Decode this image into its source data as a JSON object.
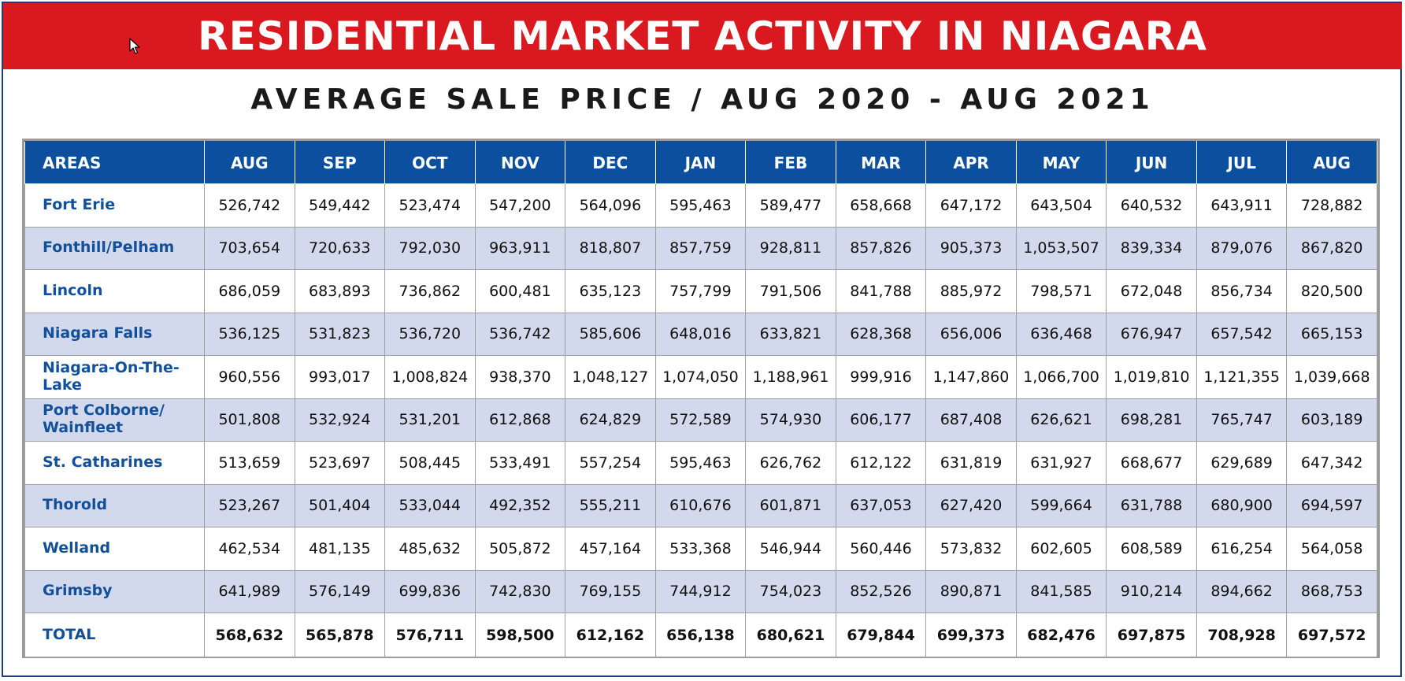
{
  "title": "RESIDENTIAL MARKET ACTIVITY IN NIAGARA",
  "subtitle": "AVERAGE SALE PRICE / AUG 2020 - AUG 2021",
  "colors": {
    "banner": "#d9191f",
    "header": "#0b4f9e",
    "stripe": "#d3d9ec",
    "area_text": "#12509a"
  },
  "chart_data": {
    "type": "table",
    "columns": [
      "AREAS",
      "AUG",
      "SEP",
      "OCT",
      "NOV",
      "DEC",
      "JAN",
      "FEB",
      "MAR",
      "APR",
      "MAY",
      "JUN",
      "JUL",
      "AUG"
    ],
    "rows": [
      {
        "area": "Fort Erie",
        "values": [
          "526,742",
          "549,442",
          "523,474",
          "547,200",
          "564,096",
          "595,463",
          "589,477",
          "658,668",
          "647,172",
          "643,504",
          "640,532",
          "643,911",
          "728,882"
        ]
      },
      {
        "area": "Fonthill/Pelham",
        "values": [
          "703,654",
          "720,633",
          "792,030",
          "963,911",
          "818,807",
          "857,759",
          "928,811",
          "857,826",
          "905,373",
          "1,053,507",
          "839,334",
          "879,076",
          "867,820"
        ]
      },
      {
        "area": "Lincoln",
        "values": [
          "686,059",
          "683,893",
          "736,862",
          "600,481",
          "635,123",
          "757,799",
          "791,506",
          "841,788",
          "885,972",
          "798,571",
          "672,048",
          "856,734",
          "820,500"
        ]
      },
      {
        "area": "Niagara Falls",
        "values": [
          "536,125",
          "531,823",
          "536,720",
          "536,742",
          "585,606",
          "648,016",
          "633,821",
          "628,368",
          "656,006",
          "636,468",
          "676,947",
          "657,542",
          "665,153"
        ]
      },
      {
        "area": "Niagara-On-The-Lake",
        "values": [
          "960,556",
          "993,017",
          "1,008,824",
          "938,370",
          "1,048,127",
          "1,074,050",
          "1,188,961",
          "999,916",
          "1,147,860",
          "1,066,700",
          "1,019,810",
          "1,121,355",
          "1,039,668"
        ]
      },
      {
        "area": "Port Colborne/ Wainfleet",
        "values": [
          "501,808",
          "532,924",
          "531,201",
          "612,868",
          "624,829",
          "572,589",
          "574,930",
          "606,177",
          "687,408",
          "626,621",
          "698,281",
          "765,747",
          "603,189"
        ]
      },
      {
        "area": "St. Catharines",
        "values": [
          "513,659",
          "523,697",
          "508,445",
          "533,491",
          "557,254",
          "595,463",
          "626,762",
          "612,122",
          "631,819",
          "631,927",
          "668,677",
          "629,689",
          "647,342"
        ]
      },
      {
        "area": "Thorold",
        "values": [
          "523,267",
          "501,404",
          "533,044",
          "492,352",
          "555,211",
          "610,676",
          "601,871",
          "637,053",
          "627,420",
          "599,664",
          "631,788",
          "680,900",
          "694,597"
        ]
      },
      {
        "area": "Welland",
        "values": [
          "462,534",
          "481,135",
          "485,632",
          "505,872",
          "457,164",
          "533,368",
          "546,944",
          "560,446",
          "573,832",
          "602,605",
          "608,589",
          "616,254",
          "564,058"
        ]
      },
      {
        "area": "Grimsby",
        "values": [
          "641,989",
          "576,149",
          "699,836",
          "742,830",
          "769,155",
          "744,912",
          "754,023",
          "852,526",
          "890,871",
          "841,585",
          "910,214",
          "894,662",
          "868,753"
        ]
      }
    ],
    "total": {
      "area": "TOTAL",
      "values": [
        "568,632",
        "565,878",
        "576,711",
        "598,500",
        "612,162",
        "656,138",
        "680,621",
        "679,844",
        "699,373",
        "682,476",
        "697,875",
        "708,928",
        "697,572"
      ]
    }
  }
}
